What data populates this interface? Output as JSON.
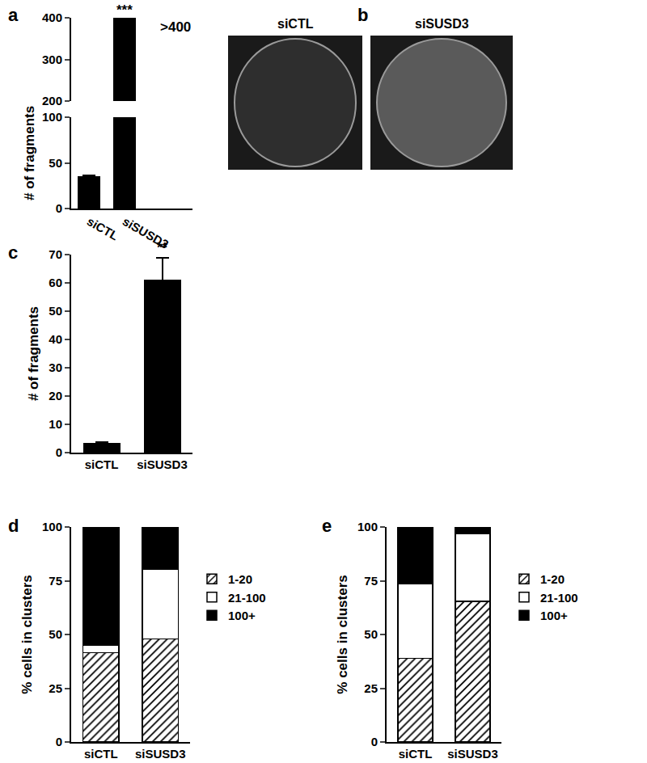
{
  "chart_data": [
    {
      "type": "bar",
      "title": "a",
      "categories": [
        "siCTL",
        "siSUSD3"
      ],
      "values": [
        35,
        400
      ],
      "errors": [
        1,
        null
      ],
      "color": "#000000",
      "y_label": "# of fragments",
      "segments": [
        {
          "ylim": [
            0,
            100
          ],
          "yticks": [
            0,
            50,
            100
          ]
        },
        {
          "ylim": [
            200,
            400
          ],
          "yticks": [
            200,
            300,
            400
          ]
        }
      ],
      "annotations": [
        {
          "category": "siSUSD3",
          "text": "***",
          "at": 400
        },
        {
          "category": "siSUSD3",
          "text": ">400",
          "at": 400
        }
      ]
    },
    {
      "type": "image",
      "title": "b",
      "categories": [
        "siCTL",
        "siSUSD3"
      ]
    },
    {
      "type": "bar",
      "title": "c",
      "categories": [
        "siCTL",
        "siSUSD3"
      ],
      "values": [
        3.3,
        61
      ],
      "errors": [
        0.3,
        8
      ],
      "color": "#000000",
      "y_label": "# of fragments",
      "ylim": [
        0,
        70
      ],
      "yticks": [
        0,
        10,
        20,
        30,
        40,
        50,
        60,
        70
      ],
      "annotations": [
        {
          "category": "siSUSD3",
          "text": "**",
          "at": 69
        }
      ]
    },
    {
      "type": "bar",
      "title": "d",
      "stacked": true,
      "legend": "right",
      "categories": [
        "siCTL",
        "siSUSD3"
      ],
      "y_label": "% cells in clusters",
      "ylim": [
        0,
        100
      ],
      "yticks": [
        0,
        25,
        50,
        75,
        100
      ],
      "series": [
        {
          "name": "1-20",
          "color": "#ffffff",
          "marker": "hatched",
          "values": [
            41.5,
            48
          ]
        },
        {
          "name": "21-100",
          "color": "#ffffff",
          "values": [
            3.5,
            32.5
          ]
        },
        {
          "name": "100+",
          "color": "#000000",
          "values": [
            55,
            19.5
          ]
        }
      ]
    },
    {
      "type": "bar",
      "title": "e",
      "stacked": true,
      "legend": "right",
      "categories": [
        "siCTL",
        "siSUSD3"
      ],
      "y_label": "% cells in clusters",
      "ylim": [
        0,
        100
      ],
      "yticks": [
        0,
        25,
        50,
        75,
        100
      ],
      "series": [
        {
          "name": "1-20",
          "color": "#ffffff",
          "marker": "hatched",
          "values": [
            39,
            65.5
          ]
        },
        {
          "name": "21-100",
          "color": "#ffffff",
          "values": [
            34.5,
            31.5
          ]
        },
        {
          "name": "100+",
          "color": "#000000",
          "values": [
            26.5,
            3
          ]
        }
      ]
    }
  ]
}
